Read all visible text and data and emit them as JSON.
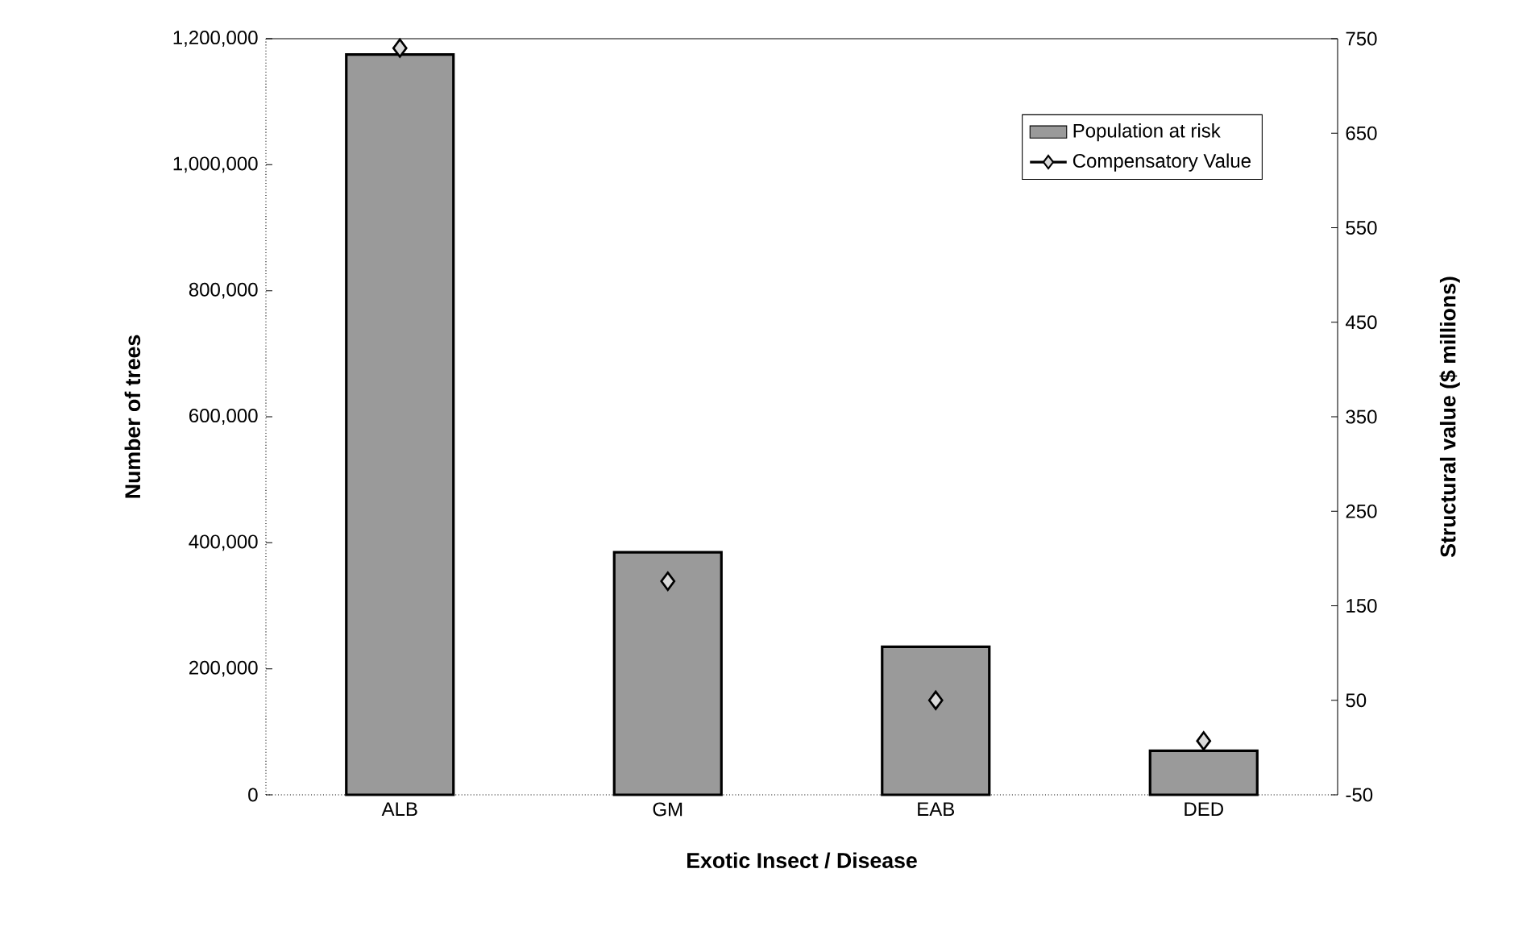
{
  "chart_data": {
    "type": "bar",
    "xlabel": "Exotic Insect / Disease",
    "ylabel": "Number of trees",
    "y2label": "Structural value ($ millions)",
    "categories": [
      "ALB",
      "GM",
      "EAB",
      "DED"
    ],
    "series": [
      {
        "name": "Population at risk",
        "color": "#9a9a9a",
        "values": [
          1175000,
          385000,
          235000,
          70000
        ]
      },
      {
        "name": "Compensatory Value",
        "type": "scatter",
        "axis": "y2",
        "marker": "diamond",
        "color": "#d9d9d9",
        "values": [
          740,
          176,
          50,
          7
        ]
      }
    ],
    "ylim": [
      0,
      1200000
    ],
    "yticks": [
      {
        "value": 0,
        "label": "0"
      },
      {
        "value": 200000,
        "label": "200,000"
      },
      {
        "value": 400000,
        "label": "400,000"
      },
      {
        "value": 600000,
        "label": "600,000"
      },
      {
        "value": 800000,
        "label": "800,000"
      },
      {
        "value": 1000000,
        "label": "1,000,000"
      },
      {
        "value": 1200000,
        "label": "1,200,000"
      }
    ],
    "y2lim": [
      -50,
      750
    ],
    "y2ticks": [
      -50,
      50,
      150,
      250,
      350,
      450,
      550,
      650,
      750
    ],
    "legend": "top right",
    "grid": false
  }
}
